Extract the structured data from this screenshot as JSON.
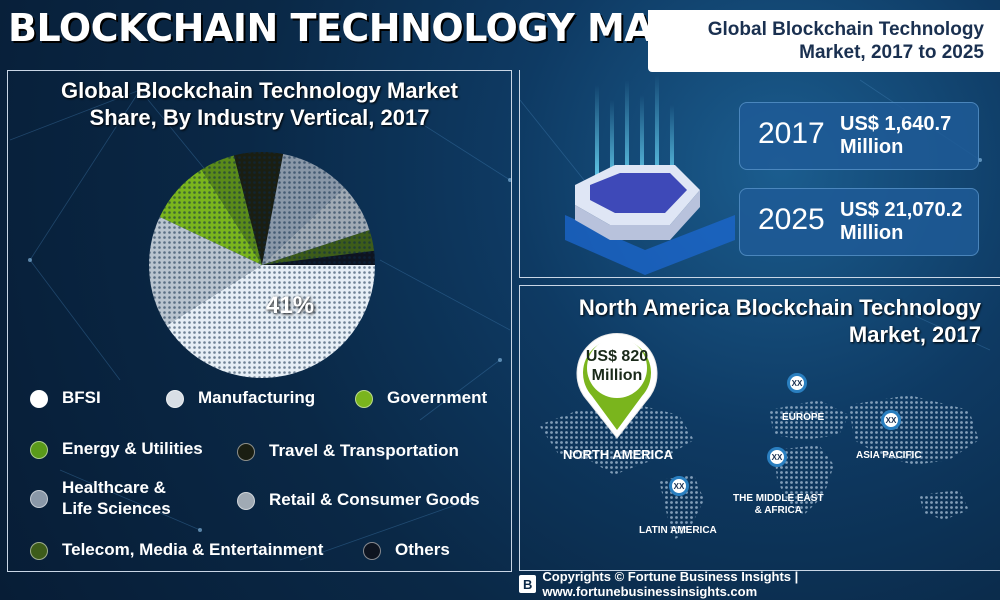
{
  "title": "BLOCKCHAIN TECHNOLOGY MARKET",
  "pie_section": {
    "title_line1": "Global Blockchain Technology Market",
    "title_line2": "Share, By Industry Vertical, 2017",
    "highlight_value": "41%",
    "slices": [
      {
        "label": "BFSI",
        "share": 41,
        "color": "#e6eef5"
      },
      {
        "label": "Manufacturing",
        "share": 16,
        "color": "#b9c4cf"
      },
      {
        "label": "Government",
        "share": 9,
        "color": "#7ab51d"
      },
      {
        "label": "Energy & Utilities",
        "share": 5,
        "color": "#5a8a1a"
      },
      {
        "label": "Travel & Transportation",
        "share": 7,
        "color": "#1a1e12"
      },
      {
        "label": "Healthcare &\nLife Sciences",
        "share": 10,
        "color": "#8a98a8"
      },
      {
        "label": "Retail & Consumer Goods",
        "share": 7,
        "color": "#a0aab4"
      },
      {
        "label": "Telecom, Media & Entertainment",
        "share": 3,
        "color": "#3d5c1a"
      },
      {
        "label": "Others",
        "share": 2,
        "color": "#0e1420"
      }
    ],
    "legend": [
      {
        "label": "BFSI",
        "color": "#ffffff"
      },
      {
        "label": "Manufacturing",
        "color": "#d8dee5"
      },
      {
        "label": "Government",
        "color": "#7ab51d"
      },
      {
        "label": "Energy & Utilities",
        "color": "#5a9a1a"
      },
      {
        "label": "Travel & Transportation",
        "color": "#1a1e12"
      },
      {
        "label": "Healthcare &\nLife Sciences",
        "color": "#8a98a8"
      },
      {
        "label": "Retail & Consumer Goods",
        "color": "#a0aab4"
      },
      {
        "label": "Telecom, Media & Entertainment",
        "color": "#3d5c1a"
      },
      {
        "label": "Others",
        "color": "#0e1420"
      }
    ]
  },
  "growth_section": {
    "title_line1": "Global Blockchain Technology",
    "title_line2": "Market, 2017 to 2025",
    "values": [
      {
        "year": "2017",
        "amount_line1": "US$ 1,640.7",
        "amount_line2": "Million"
      },
      {
        "year": "2025",
        "amount_line1": "US$ 21,070.2",
        "amount_line2": "Million"
      }
    ]
  },
  "north_america_section": {
    "title_line1": "North America Blockchain Technology",
    "title_line2": "Market, 2017",
    "big_pin_line1": "US$ 820",
    "big_pin_line2": "Million",
    "pin_text": "XX",
    "regions": {
      "north_america": "NORTH AMERICA",
      "europe": "EUROPE",
      "asia_pacific": "ASIA PACIFIC",
      "mea_line1": "THE MIDDLE EAST",
      "mea_line2": "& AFRICA",
      "latin_america": "LATIN AMERICA"
    }
  },
  "footer": {
    "logo_letter": "B",
    "text": "Copyrights © Fortune Business Insights | www.fortunebusinessinsights.com"
  },
  "colors": {
    "background": "#0a2846",
    "accent_green": "#7ab51d",
    "pin_blue": "#2a7fc0"
  }
}
